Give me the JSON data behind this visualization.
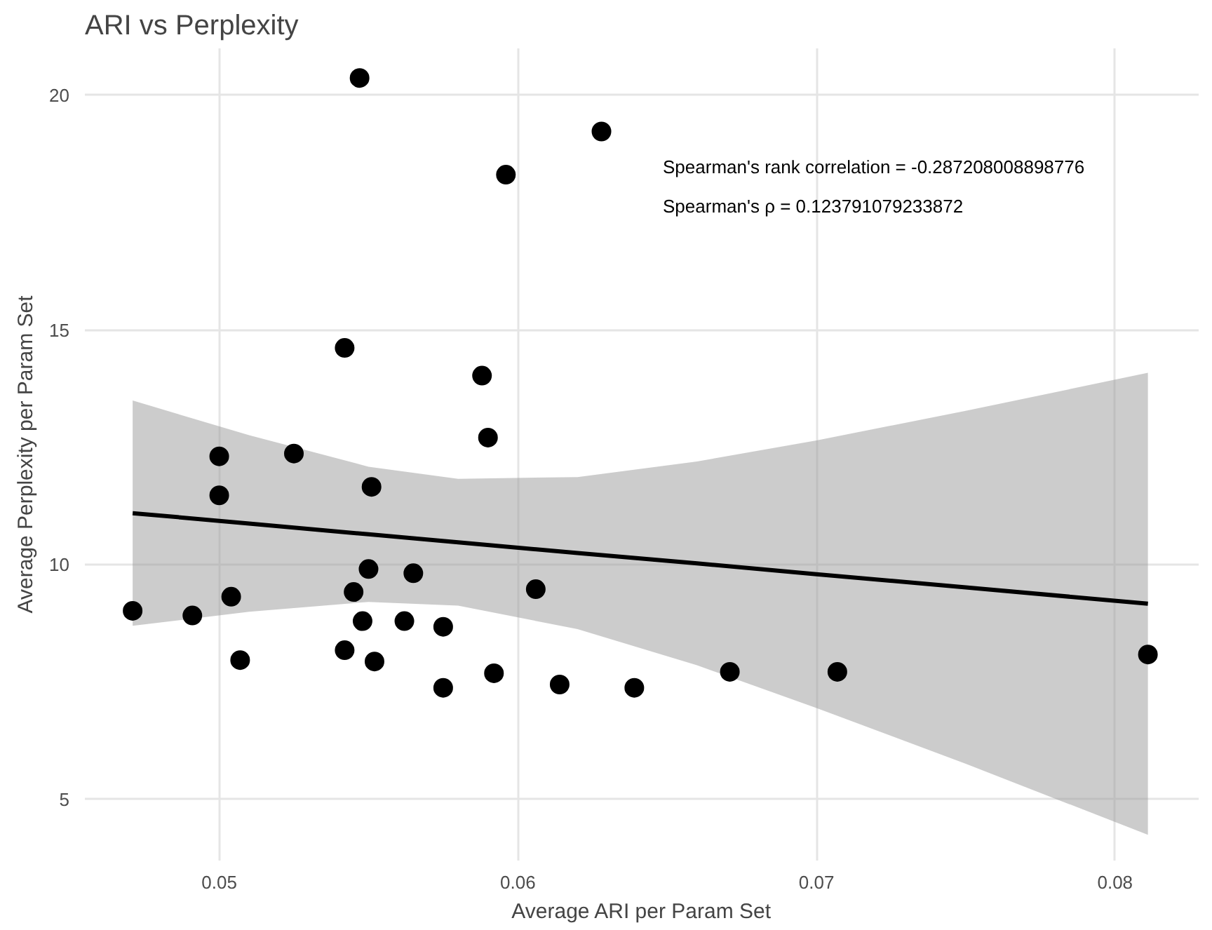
{
  "chart_data": {
    "type": "scatter",
    "title": "ARI vs Perplexity",
    "xlabel": "Average ARI per Param Set",
    "ylabel": "Average Perplexity per Param Set",
    "annotations": [
      "Spearman's rank correlation = -0.287208008898776",
      "Spearman's ρ = 0.123791079233872"
    ],
    "xlim": [
      0.0455,
      0.0828
    ],
    "ylim": [
      3.7,
      21.0
    ],
    "xticks": [
      0.05,
      0.06,
      0.07,
      0.08
    ],
    "yticks": [
      5,
      10,
      15,
      20
    ],
    "grid": true,
    "series": [
      {
        "type": "line",
        "color": "#000000",
        "x": [
          0.0471,
          0.051,
          0.055,
          0.058,
          0.062,
          0.066,
          0.07,
          0.075,
          0.0811
        ],
        "values": [
          11.1,
          10.88,
          10.65,
          10.48,
          10.25,
          10.03,
          9.8,
          9.52,
          9.17
        ],
        "lower": [
          8.7,
          9.0,
          9.21,
          9.13,
          8.63,
          7.86,
          6.95,
          5.76,
          4.25
        ],
        "upper": [
          13.5,
          12.76,
          12.09,
          11.83,
          11.87,
          12.2,
          12.65,
          13.28,
          14.09
        ]
      },
      {
        "color": "#000000",
        "marker": "circle",
        "x": [
          0.0471,
          0.05,
          0.05,
          0.0504,
          0.0507,
          0.0491,
          0.0525,
          0.0542,
          0.0547,
          0.0545,
          0.0542,
          0.0548,
          0.055,
          0.0551,
          0.0552,
          0.0565,
          0.0562,
          0.0575,
          0.0575,
          0.0588,
          0.059,
          0.0592,
          0.0596,
          0.0606,
          0.0614,
          0.0628,
          0.0639,
          0.0671,
          0.0707,
          0.0811
        ],
        "values": [
          9.02,
          12.31,
          11.48,
          9.32,
          7.97,
          8.92,
          12.37,
          14.62,
          20.37,
          9.42,
          8.18,
          8.8,
          9.91,
          11.66,
          7.94,
          9.82,
          8.8,
          8.68,
          7.38,
          14.03,
          12.71,
          7.69,
          18.31,
          9.48,
          7.45,
          19.23,
          7.38,
          7.72,
          7.72,
          8.09
        ]
      }
    ]
  }
}
